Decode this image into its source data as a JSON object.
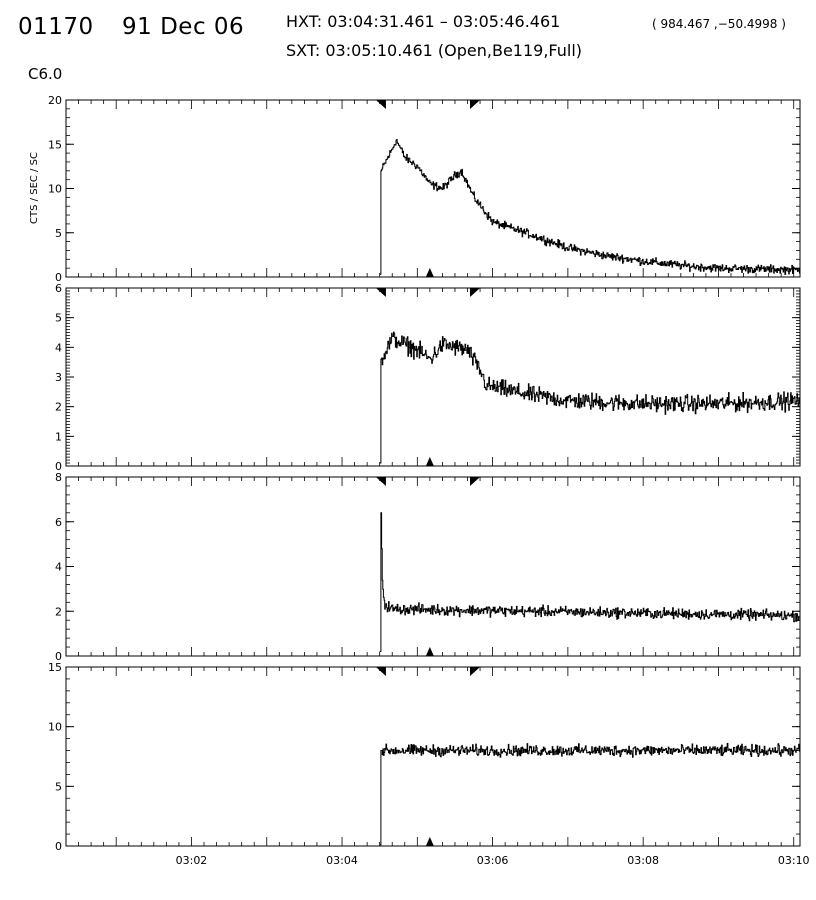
{
  "header": {
    "flare_id": "01170",
    "date": "91 Dec 06",
    "hxt_interval": "HXT: 03:04:31.461 – 03:05:46.461",
    "hxt_position": "( 984.467 ,−50.4998 )",
    "sxt_time": "SXT: 03:05:10.461 (Open,Be119,Full)",
    "goes_class": "C6.0"
  },
  "chart_data": {
    "type": "line",
    "x_unit": "UT",
    "xlim": [
      "03:00:20",
      "03:10:05"
    ],
    "x_ticks": [
      "03:02",
      "03:04",
      "03:06",
      "03:08",
      "03:10"
    ],
    "ylabel": "CTS / SEC / SC",
    "markers": {
      "hxt_start": "03:04:31",
      "hxt_end": "03:05:46",
      "sxt_time": "03:05:10"
    },
    "panels": [
      {
        "ylim": [
          0,
          20
        ],
        "yticks": [
          0,
          5,
          10,
          15,
          20
        ],
        "data_start": "03:04:30",
        "key_points": [
          [
            "03:04:30",
            0.3
          ],
          [
            "03:04:31",
            12.0
          ],
          [
            "03:04:40",
            14.5
          ],
          [
            "03:04:43",
            15.5
          ],
          [
            "03:04:50",
            13.5
          ],
          [
            "03:05:00",
            12.5
          ],
          [
            "03:05:10",
            10.5
          ],
          [
            "03:05:20",
            10.0
          ],
          [
            "03:05:30",
            11.5
          ],
          [
            "03:05:35",
            12.0
          ],
          [
            "03:05:45",
            9.0
          ],
          [
            "03:06:00",
            6.2
          ],
          [
            "03:06:30",
            4.8
          ],
          [
            "03:07:00",
            3.3
          ],
          [
            "03:07:30",
            2.4
          ],
          [
            "03:08:00",
            1.8
          ],
          [
            "03:08:30",
            1.3
          ],
          [
            "03:09:00",
            1.0
          ],
          [
            "03:10:05",
            0.8
          ]
        ],
        "noise": 0.35
      },
      {
        "ylim": [
          0,
          6
        ],
        "yticks": [
          0,
          1,
          2,
          3,
          4,
          5,
          6
        ],
        "data_start": "03:04:30",
        "key_points": [
          [
            "03:04:30",
            0.1
          ],
          [
            "03:04:31",
            3.6
          ],
          [
            "03:04:40",
            4.3
          ],
          [
            "03:05:00",
            3.9
          ],
          [
            "03:05:10",
            3.6
          ],
          [
            "03:05:20",
            4.1
          ],
          [
            "03:05:40",
            3.9
          ],
          [
            "03:05:50",
            3.2
          ],
          [
            "03:05:55",
            2.7
          ],
          [
            "03:06:30",
            2.4
          ],
          [
            "03:07:00",
            2.2
          ],
          [
            "03:08:00",
            2.1
          ],
          [
            "03:09:00",
            2.1
          ],
          [
            "03:10:05",
            2.2
          ]
        ],
        "noise": 0.22
      },
      {
        "ylim": [
          0,
          8
        ],
        "yticks": [
          0,
          2,
          4,
          6,
          8
        ],
        "data_start": "03:04:30",
        "key_points": [
          [
            "03:04:30",
            0.2
          ],
          [
            "03:04:31",
            6.4
          ],
          [
            "03:04:32",
            3.2
          ],
          [
            "03:04:34",
            2.3
          ],
          [
            "03:04:40",
            2.1
          ],
          [
            "03:10:05",
            1.8
          ]
        ],
        "noise": 0.18
      },
      {
        "ylim": [
          0,
          15
        ],
        "yticks": [
          0,
          5,
          10,
          15
        ],
        "data_start": "03:04:30",
        "key_points": [
          [
            "03:04:30",
            0.1
          ],
          [
            "03:04:31",
            8.0
          ],
          [
            "03:10:05",
            8.0
          ]
        ],
        "noise": 0.35
      }
    ]
  }
}
